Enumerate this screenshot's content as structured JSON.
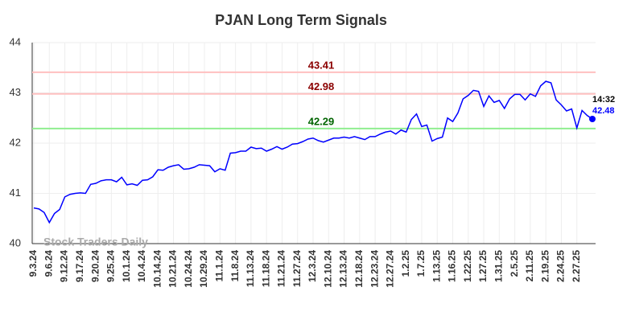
{
  "chart_data": {
    "type": "line",
    "title": "PJAN Long Term Signals",
    "categories": [
      "9.3.24",
      null,
      null,
      "9.6.24",
      null,
      null,
      "9.12.24",
      null,
      null,
      "9.17.24",
      null,
      null,
      "9.20.24",
      null,
      null,
      "9.25.24",
      null,
      null,
      "10.1.24",
      null,
      null,
      "10.4.24",
      null,
      null,
      "10.14.24",
      null,
      null,
      "10.21.24",
      null,
      null,
      "10.24.24",
      null,
      null,
      "10.29.24",
      null,
      null,
      "11.1.24",
      null,
      null,
      "11.8.24",
      null,
      null,
      "11.13.24",
      null,
      null,
      "11.18.24",
      null,
      null,
      "11.21.24",
      null,
      null,
      "11.27.24",
      null,
      null,
      "12.3.24",
      null,
      null,
      "12.10.24",
      null,
      null,
      "12.13.24",
      null,
      null,
      "12.18.24",
      null,
      null,
      "12.23.24",
      null,
      null,
      "12.27.24",
      null,
      null,
      "1.2.25",
      null,
      null,
      "1.7.25",
      null,
      null,
      "1.13.25",
      null,
      null,
      "1.16.25",
      null,
      null,
      "1.22.25",
      null,
      null,
      "1.27.25",
      null,
      null,
      "1.31.25",
      null,
      null,
      "2.5.25",
      null,
      null,
      "2.11.25",
      null,
      null,
      "2.19.25",
      null,
      null,
      "2.24.25",
      null,
      null,
      "2.27.25",
      null,
      null,
      null
    ],
    "series": [
      {
        "color": "#0000ff",
        "values": [
          40.71,
          40.69,
          40.62,
          40.42,
          40.6,
          40.68,
          40.93,
          40.98,
          41.0,
          41.01,
          41.0,
          41.18,
          41.2,
          41.25,
          41.27,
          41.27,
          41.23,
          41.32,
          41.17,
          41.19,
          41.16,
          41.26,
          41.27,
          41.33,
          41.47,
          41.46,
          41.52,
          41.55,
          41.57,
          41.48,
          41.49,
          41.52,
          41.57,
          41.56,
          41.55,
          41.43,
          41.49,
          41.46,
          41.8,
          41.81,
          41.84,
          41.84,
          41.92,
          41.89,
          41.9,
          41.84,
          41.88,
          41.93,
          41.88,
          41.92,
          41.98,
          41.99,
          42.03,
          42.08,
          42.1,
          42.05,
          42.02,
          42.06,
          42.1,
          42.1,
          42.12,
          42.1,
          42.13,
          42.1,
          42.07,
          42.13,
          42.13,
          42.18,
          42.22,
          42.24,
          42.18,
          42.26,
          42.22,
          42.47,
          42.58,
          42.33,
          42.36,
          42.04,
          42.09,
          42.12,
          42.5,
          42.43,
          42.6,
          42.88,
          42.95,
          43.05,
          43.03,
          42.73,
          42.94,
          42.81,
          42.85,
          42.69,
          42.88,
          42.97,
          42.97,
          42.86,
          42.98,
          42.93,
          43.14,
          43.23,
          43.2,
          42.86,
          42.76,
          42.64,
          42.68,
          42.3,
          42.65,
          42.55,
          42.48
        ]
      }
    ],
    "ylim": [
      40,
      44
    ],
    "yticks": [
      40,
      41,
      42,
      43,
      44
    ],
    "grid": true,
    "hlines": [
      {
        "value": 43.41,
        "color": "#ffc0c0",
        "label_color": "#8b0000"
      },
      {
        "value": 42.98,
        "color": "#ffc0c0",
        "label_color": "#8b0000"
      },
      {
        "value": 42.29,
        "color": "#90ee90",
        "label_color": "#006400"
      }
    ],
    "annotation": {
      "time": "14:32",
      "value": 42.48
    },
    "watermark": "Stock Traders Daily"
  }
}
